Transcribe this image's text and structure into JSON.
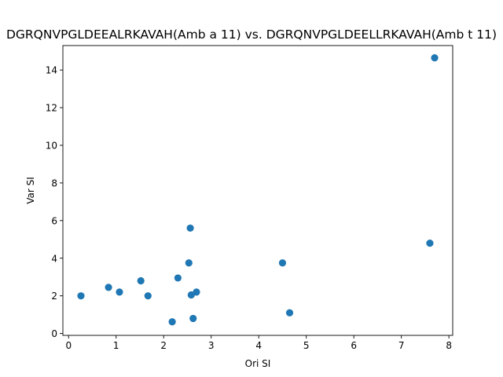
{
  "chart_data": {
    "type": "scatter",
    "title": "DGRQNVPGLDEEALRKAVAH(Amb a 11) vs. DGRQNVPGLDEELLRKAVAH(Amb t 11)",
    "xlabel": "Ori SI",
    "ylabel": "Var SI",
    "xlim": [
      -0.12,
      8.08
    ],
    "ylim": [
      -0.1,
      15.3
    ],
    "xticks": [
      "0",
      "1",
      "2",
      "3",
      "4",
      "5",
      "6",
      "7",
      "8"
    ],
    "yticks": [
      "0",
      "2",
      "4",
      "6",
      "8",
      "10",
      "12",
      "14"
    ],
    "grid": false,
    "marker_color": "#1f77b4",
    "points": [
      {
        "x": 0.26,
        "y": 2.0
      },
      {
        "x": 0.84,
        "y": 2.45
      },
      {
        "x": 1.07,
        "y": 2.2
      },
      {
        "x": 1.52,
        "y": 2.8
      },
      {
        "x": 1.67,
        "y": 2.0
      },
      {
        "x": 2.18,
        "y": 0.62
      },
      {
        "x": 2.3,
        "y": 2.95
      },
      {
        "x": 2.53,
        "y": 3.75
      },
      {
        "x": 2.56,
        "y": 5.6
      },
      {
        "x": 2.58,
        "y": 2.05
      },
      {
        "x": 2.62,
        "y": 0.8
      },
      {
        "x": 2.69,
        "y": 2.2
      },
      {
        "x": 4.5,
        "y": 3.75
      },
      {
        "x": 4.65,
        "y": 1.1
      },
      {
        "x": 7.6,
        "y": 4.8
      },
      {
        "x": 7.7,
        "y": 14.65
      }
    ]
  }
}
